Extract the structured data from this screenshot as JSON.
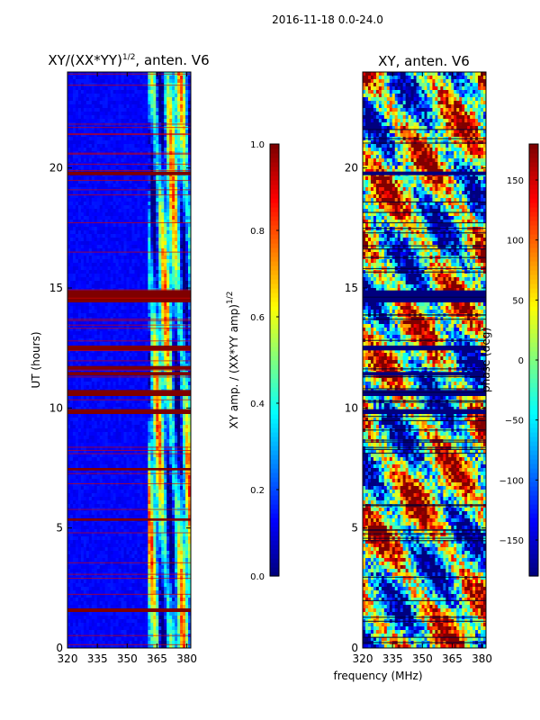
{
  "figure": {
    "suptitle": "2016-11-18 0.0-24.0",
    "shared_xlabel": "frequency (MHz)"
  },
  "chart_data": [
    {
      "type": "heatmap",
      "title_main": "XY/(XX*YY)",
      "title_sup": "1/2",
      "title_tail": ", anten. V6",
      "ylabel": "UT (hours)",
      "xlim": [
        320,
        382
      ],
      "ylim": [
        0,
        24
      ],
      "xticks": [
        320,
        335,
        350,
        365,
        380
      ],
      "yticks": [
        0,
        5,
        10,
        15,
        20
      ],
      "colorbar": {
        "label_main": "XY amp. / (XX*YY amp)",
        "label_sup": "1/2",
        "range": [
          0.0,
          1.0
        ],
        "ticks": [
          "0.0",
          "0.2",
          "0.4",
          "0.6",
          "0.8",
          "1.0"
        ],
        "colormap": [
          "#00007f",
          "#0000ff",
          "#007fff",
          "#00ffff",
          "#7fff7f",
          "#ffff00",
          "#ff7f00",
          "#ff0000",
          "#7f0000"
        ]
      },
      "features": {
        "background_value": 0.1,
        "bright_band_mhz": [
          361,
          382
        ],
        "masked_value": 1.0,
        "masked_hour_ranges": [
          [
            14.4,
            14.9
          ],
          [
            19.7,
            19.85
          ],
          [
            12.4,
            12.6
          ],
          [
            11.35,
            11.5
          ],
          [
            10.5,
            10.75
          ],
          [
            9.75,
            9.95
          ],
          [
            11.6,
            11.75
          ],
          [
            1.5,
            1.65
          ],
          [
            5.3,
            5.4
          ],
          [
            7.4,
            7.5
          ]
        ]
      }
    },
    {
      "type": "heatmap",
      "title": "XY, anten. V6",
      "ylabel": "phase (deg)",
      "xlim": [
        320,
        382
      ],
      "ylim": [
        0,
        24
      ],
      "xticks": [
        320,
        335,
        350,
        365,
        380
      ],
      "yticks": [
        0,
        5,
        10,
        15,
        20
      ],
      "colorbar": {
        "label": "phase (deg)",
        "range": [
          -180,
          180
        ],
        "ticks": [
          "150",
          "100",
          "50",
          "0",
          "−50",
          "−100",
          "−150"
        ],
        "colormap": [
          "#00007f",
          "#0000ff",
          "#007fff",
          "#00ffff",
          "#7fff7f",
          "#ffff00",
          "#ff7f00",
          "#ff0000",
          "#7f0000"
        ]
      },
      "features": {
        "value_distribution": "noisy full-range phase",
        "masked_value": -180,
        "masked_hour_ranges": [
          [
            14.4,
            14.9
          ],
          [
            19.7,
            19.85
          ],
          [
            12.4,
            12.6
          ],
          [
            11.35,
            11.5
          ],
          [
            10.5,
            10.75
          ],
          [
            9.75,
            9.95
          ]
        ]
      }
    }
  ]
}
